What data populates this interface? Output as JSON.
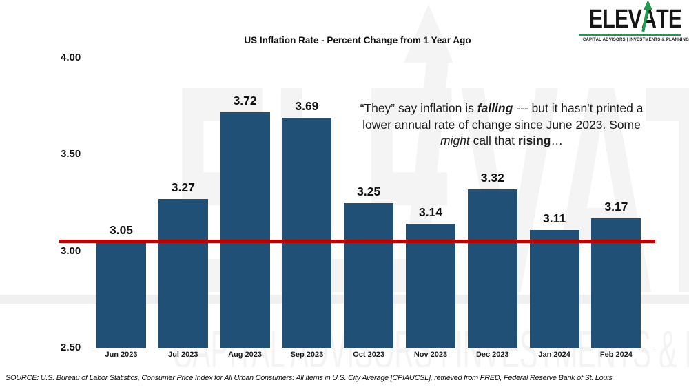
{
  "chart_data": {
    "type": "bar",
    "title": "US Inflation Rate - Percent Change from 1 Year Ago",
    "categories": [
      "Jun 2023",
      "Jul 2023",
      "Aug 2023",
      "Sep 2023",
      "Oct 2023",
      "Nov 2023",
      "Dec 2023",
      "Jan 2024",
      "Feb 2024"
    ],
    "values": [
      3.05,
      3.27,
      3.72,
      3.69,
      3.25,
      3.14,
      3.32,
      3.11,
      3.17
    ],
    "xlabel": "",
    "ylabel": "",
    "ylim": [
      2.5,
      4.0
    ],
    "y_ticks": [
      {
        "label": "4.00",
        "value": 4.0
      },
      {
        "label": "3.50",
        "value": 3.5
      },
      {
        "label": "3.00",
        "value": 3.0
      },
      {
        "label": "2.50",
        "value": 2.5
      }
    ],
    "grid": false,
    "legend": null,
    "bar_color": "#215077",
    "reference_line": {
      "value": 3.05,
      "color": "#C00000"
    }
  },
  "annotation": {
    "lines": [
      [
        {
          "text": "“They” say inflation is "
        },
        {
          "text": "falling",
          "bold": true,
          "italic": true
        },
        {
          "text": " --- but it hasn't printed a"
        }
      ],
      [
        {
          "text": "lower annual rate of change since June 2023. Some"
        }
      ],
      [
        {
          "text": "might",
          "italic": true
        },
        {
          "text": " call that "
        },
        {
          "text": "rising",
          "bold": true
        },
        {
          "text": "…"
        }
      ]
    ]
  },
  "logo": {
    "prefix": "ELEV",
    "letter": "A",
    "suffix": "TE",
    "tagline": "CAPITAL ADVISORS | INVESTMENTS & PLANNING",
    "arrow_color": "#1E9B4D"
  },
  "watermark": {
    "brand": "ELEVATE",
    "tagline": "CAPITAL ADVISORS | INVESTMENTS & PLANNING"
  },
  "source": {
    "text": "SOURCE: U.S. Bureau of Labor Statistics, Consumer Price Index for All Urban Consumers: All Items in U.S. City Average [CPIAUCSL], retrieved from FRED, Federal Reserve Bank of St. Louis."
  }
}
